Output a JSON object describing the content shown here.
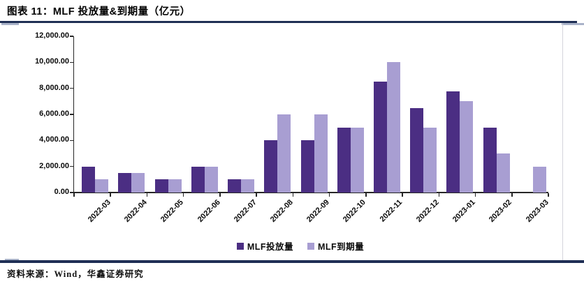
{
  "page": {
    "title": "图表 11：MLF 投放量&到期量（亿元）",
    "source_note": "资料来源：Wind，华鑫证券研究"
  },
  "colors": {
    "rule_navy": "#1f2f55",
    "rule_accent_light": "#aab3c9",
    "divider_gray": "#d4d4dc",
    "axis_black": "#262626",
    "bar_mlf_injection": "#4b2e83",
    "bar_mlf_maturity": "#a89ed2"
  },
  "chart_data": {
    "type": "bar",
    "title": "MLF 投放量&到期量（亿元）",
    "categories": [
      "2022-03",
      "2022-04",
      "2022-05",
      "2022-06",
      "2022-07",
      "2022-08",
      "2022-09",
      "2022-10",
      "2022-11",
      "2022-12",
      "2023-01",
      "2023-02",
      "2023-03"
    ],
    "series": [
      {
        "name": "MLF投放量",
        "slug": "mlf-injection",
        "color_key": "bar_mlf_injection",
        "values": [
          2000,
          1500,
          1000,
          2000,
          1000,
          4000,
          4000,
          5000,
          8500,
          6500,
          7790,
          4990,
          0
        ]
      },
      {
        "name": "MLF到期量",
        "slug": "mlf-maturity",
        "color_key": "bar_mlf_maturity",
        "values": [
          1000,
          1500,
          1000,
          2000,
          1000,
          6000,
          6000,
          5000,
          10000,
          5000,
          7000,
          3000,
          2000
        ]
      }
    ],
    "xlabel": "",
    "ylabel": "",
    "ylim": [
      0,
      12000
    ],
    "ytick_step": 2000,
    "ytick_labels": [
      "0.00",
      "2,000.00",
      "4,000.00",
      "6,000.00",
      "8,000.00",
      "10,000.00",
      "12,000.00"
    ],
    "grid": false,
    "legend_position": "bottom-center"
  }
}
